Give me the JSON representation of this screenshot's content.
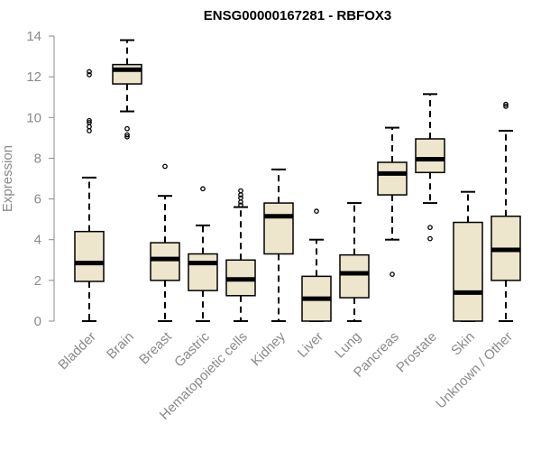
{
  "chart_data": {
    "type": "boxplot",
    "title": "ENSG00000167281 - RBFOX3",
    "xlabel": "",
    "ylabel": "Expression",
    "ylim": [
      0,
      14
    ],
    "yticks": [
      0,
      2,
      4,
      6,
      8,
      10,
      12,
      14
    ],
    "box_fill": "#ede6cc",
    "categories": [
      "Bladder",
      "Brain",
      "Breast",
      "Gastric",
      "Hematopoietic cells",
      "Kidney",
      "Liver",
      "Lung",
      "Pancreas",
      "Prostate",
      "Skin",
      "Unknown / Other"
    ],
    "boxes": [
      {
        "name": "Bladder",
        "min": 0.0,
        "q1": 1.95,
        "median": 2.85,
        "q3": 4.4,
        "max": 7.05,
        "outliers": [
          9.35,
          9.55,
          9.75,
          9.85,
          12.1,
          12.25
        ]
      },
      {
        "name": "Brain",
        "min": 10.3,
        "q1": 11.65,
        "median": 12.35,
        "q3": 12.6,
        "max": 13.8,
        "outliers": [
          9.05,
          9.15,
          9.45
        ]
      },
      {
        "name": "Breast",
        "min": 0.0,
        "q1": 2.0,
        "median": 3.05,
        "q3": 3.85,
        "max": 6.15,
        "outliers": [
          7.6
        ]
      },
      {
        "name": "Gastric",
        "min": 0.0,
        "q1": 1.5,
        "median": 2.85,
        "q3": 3.3,
        "max": 4.7,
        "outliers": [
          6.5
        ]
      },
      {
        "name": "Hematopoietic cells",
        "min": 0.0,
        "q1": 1.25,
        "median": 2.05,
        "q3": 3.0,
        "max": 5.6,
        "outliers": [
          5.7,
          5.85,
          6.05,
          6.2,
          6.4
        ]
      },
      {
        "name": "Kidney",
        "min": 0.0,
        "q1": 3.3,
        "median": 5.15,
        "q3": 5.8,
        "max": 7.45,
        "outliers": []
      },
      {
        "name": "Liver",
        "min": 0.0,
        "q1": 0.0,
        "median": 1.1,
        "q3": 2.2,
        "max": 4.0,
        "outliers": [
          5.4
        ]
      },
      {
        "name": "Lung",
        "min": 0.0,
        "q1": 1.15,
        "median": 2.35,
        "q3": 3.25,
        "max": 5.8,
        "outliers": []
      },
      {
        "name": "Pancreas",
        "min": 4.0,
        "q1": 6.2,
        "median": 7.25,
        "q3": 7.8,
        "max": 9.5,
        "outliers": [
          2.3
        ]
      },
      {
        "name": "Prostate",
        "min": 5.8,
        "q1": 7.3,
        "median": 7.95,
        "q3": 8.95,
        "max": 11.15,
        "outliers": [
          4.05,
          4.6
        ]
      },
      {
        "name": "Skin",
        "min": 0.0,
        "q1": 0.0,
        "median": 1.4,
        "q3": 4.85,
        "max": 6.35,
        "outliers": []
      },
      {
        "name": "Unknown / Other",
        "min": 0.0,
        "q1": 2.0,
        "median": 3.5,
        "q3": 5.15,
        "max": 9.35,
        "outliers": [
          10.55,
          10.65
        ]
      }
    ]
  }
}
